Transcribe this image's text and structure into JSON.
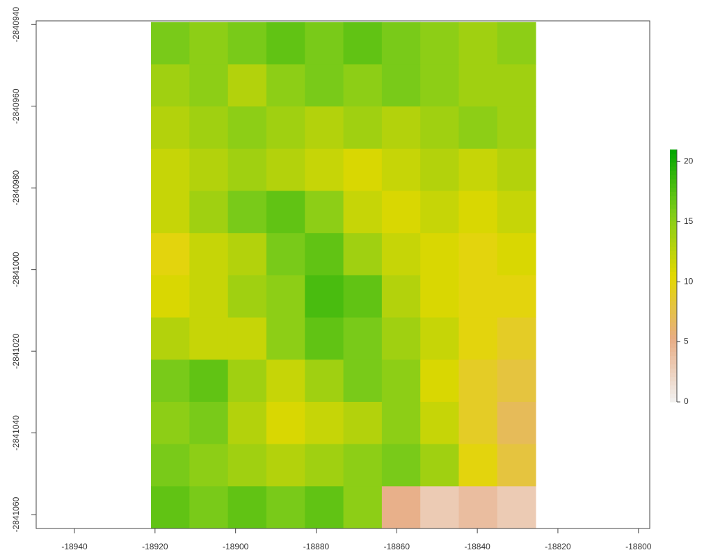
{
  "chart_data": {
    "type": "raster",
    "xlim": [
      -18949.5,
      -18797.2
    ],
    "ylim": [
      -2841063.4,
      -2840939.1
    ],
    "xticks": [
      -18940,
      -18920,
      -18900,
      -18880,
      -18860,
      -18840,
      -18820,
      -18800
    ],
    "yticks": [
      -2840940,
      -2840960,
      -2840980,
      -2841000,
      -2841020,
      -2841040,
      -2841060
    ],
    "extent_x": [
      -18921,
      -18825.5
    ],
    "extent_y": [
      -2841063.4,
      -2840939.4
    ],
    "values": [
      [
        16,
        15,
        16,
        17,
        16,
        17,
        16,
        15,
        14,
        15
      ],
      [
        14,
        15,
        13,
        15,
        16,
        15,
        16,
        15,
        14,
        14
      ],
      [
        13,
        14,
        15,
        14,
        13,
        14,
        13,
        14,
        15,
        14
      ],
      [
        12,
        13,
        14,
        13,
        12,
        11,
        12,
        13,
        12,
        13
      ],
      [
        12,
        14,
        16,
        17,
        15,
        12,
        11,
        12,
        11,
        12
      ],
      [
        10,
        12,
        13,
        16,
        17,
        14,
        12,
        11,
        10,
        11
      ],
      [
        11,
        12,
        14,
        15,
        18,
        17,
        13,
        11,
        10,
        10
      ],
      [
        13,
        12,
        12,
        15,
        17,
        16,
        14,
        12,
        10,
        9
      ],
      [
        16,
        17,
        14,
        12,
        14,
        16,
        15,
        11,
        9,
        8
      ],
      [
        15,
        16,
        13,
        11,
        12,
        13,
        15,
        12,
        9,
        7
      ],
      [
        16,
        15,
        14,
        13,
        14,
        15,
        16,
        14,
        10,
        8
      ],
      [
        17,
        16,
        17,
        16,
        17,
        15,
        5,
        3,
        4,
        3
      ]
    ],
    "zlim": [
      0,
      21
    ],
    "legend_ticks": [
      0,
      5,
      10,
      15,
      20
    ],
    "colors": [
      "#f2f2f2",
      "#e8ad85",
      "#e2d800",
      "#7fcc1a",
      "#00a600"
    ]
  }
}
